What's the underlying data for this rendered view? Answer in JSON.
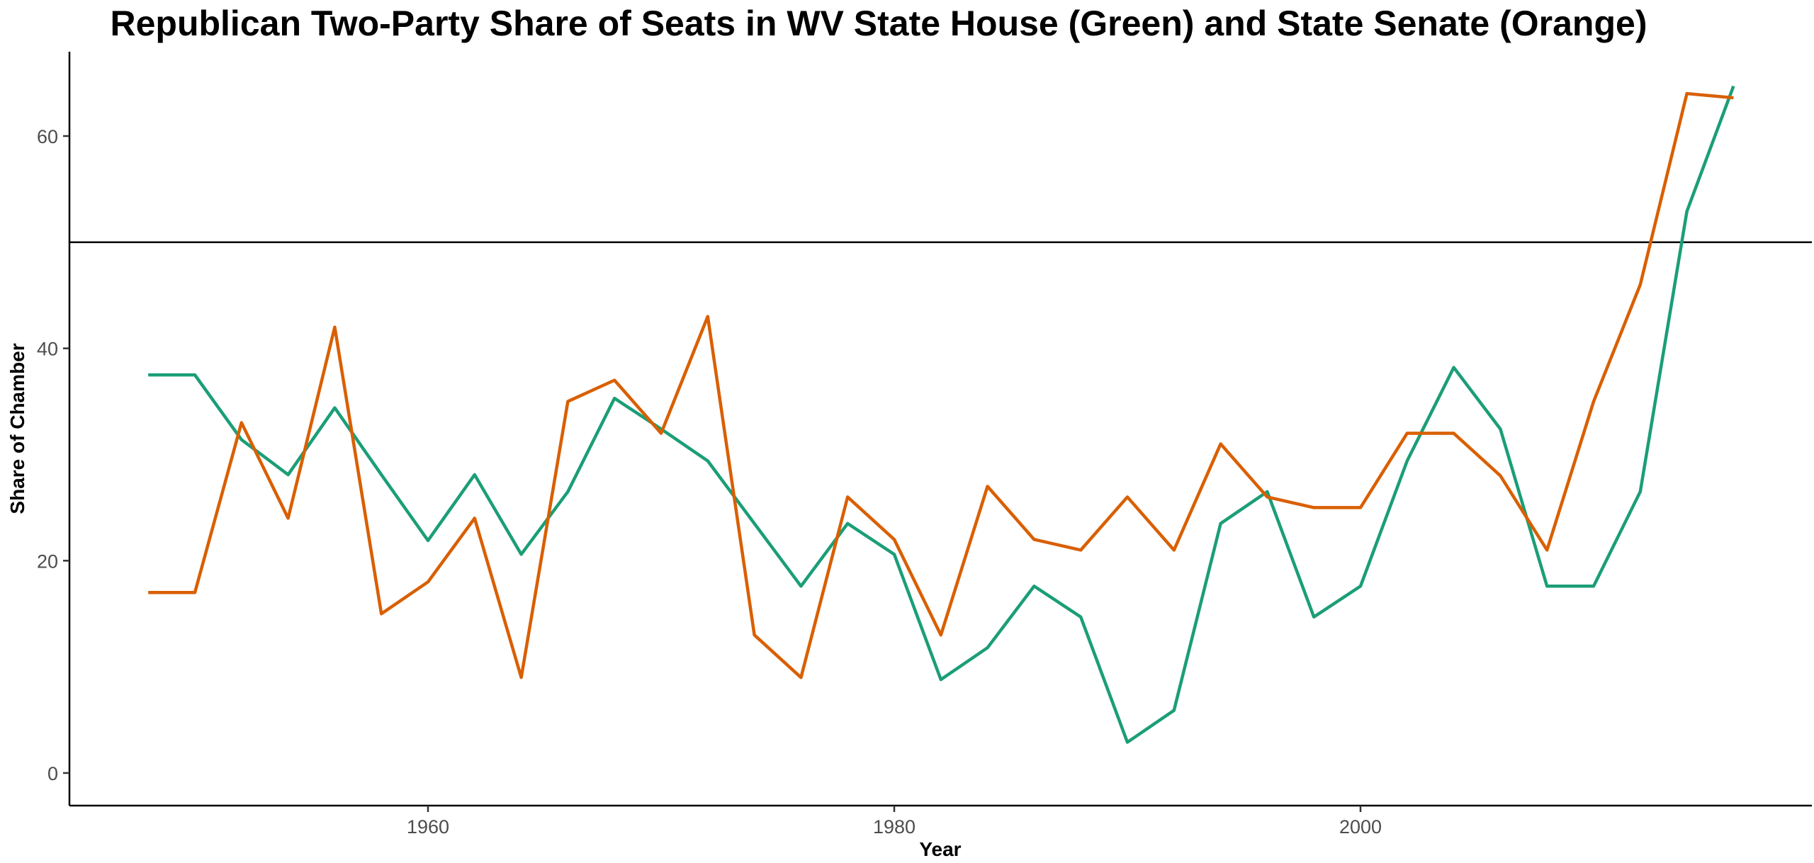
{
  "chart_data": {
    "type": "line",
    "title": "Republican Two-Party Share of Seats in WV State House (Green) and State Senate (Orange)",
    "xlabel": "Year",
    "ylabel": "Share of Chamber",
    "xlim": [
      1946.5,
      2017.5
    ],
    "ylim": [
      -3.5,
      68
    ],
    "xticks": [
      1960,
      1980,
      2000
    ],
    "yticks": [
      0,
      20,
      40,
      60
    ],
    "grid": false,
    "legend": "none",
    "reference_line": {
      "y": 50,
      "color": "#000000"
    },
    "x": [
      1948,
      1950,
      1952,
      1954,
      1956,
      1958,
      1960,
      1962,
      1964,
      1966,
      1968,
      1970,
      1972,
      1974,
      1976,
      1978,
      1980,
      1982,
      1984,
      1986,
      1988,
      1990,
      1992,
      1994,
      1996,
      1998,
      2000,
      2002,
      2004,
      2006,
      2008,
      2010,
      2012,
      2014,
      2016
    ],
    "series": [
      {
        "color": "#1b9e77",
        "values": [
          37.5,
          37.5,
          31.4,
          28.1,
          34.4,
          28.1,
          21.9,
          28.1,
          20.6,
          26.5,
          35.3,
          32.4,
          29.4,
          23.5,
          17.6,
          23.5,
          20.6,
          8.8,
          11.8,
          17.6,
          14.7,
          2.9,
          5.9,
          23.5,
          26.5,
          14.7,
          17.6,
          29.4,
          38.2,
          32.4,
          17.6,
          17.6,
          26.5,
          52.9,
          64.7
        ]
      },
      {
        "color": "#d95f02",
        "values": [
          17,
          17,
          33,
          24,
          42,
          15,
          18,
          24,
          9,
          35,
          37,
          32,
          43,
          13,
          9,
          26,
          22,
          13,
          27,
          22,
          21,
          26,
          21,
          31,
          26,
          25,
          25,
          32,
          32,
          28,
          21,
          35,
          46,
          64,
          63.6
        ]
      }
    ]
  }
}
